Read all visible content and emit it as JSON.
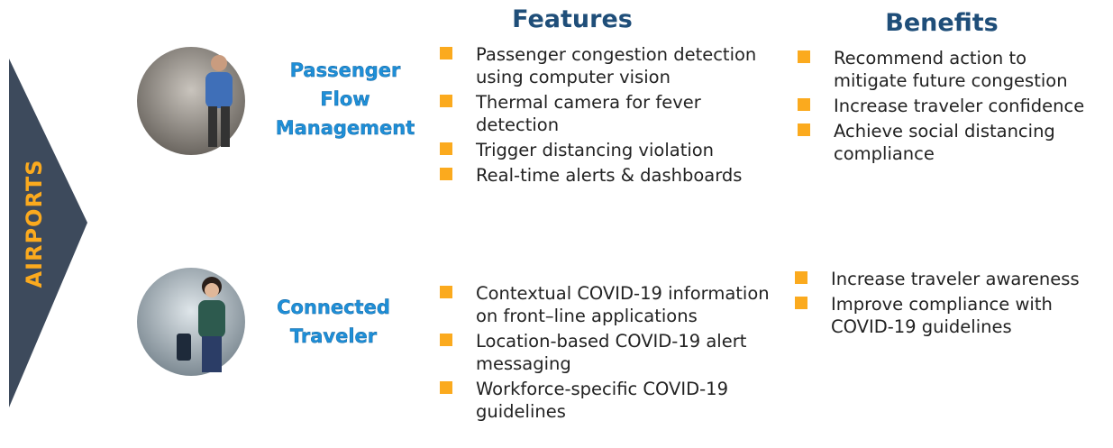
{
  "side_label": "AIRPORTS",
  "headers": {
    "features": "Features",
    "benefits": "Benefits"
  },
  "rows": [
    {
      "title": "Passenger Flow Management",
      "features": [
        "Passenger congestion detection using computer vision",
        "Thermal camera for fever detection",
        "Trigger distancing violation",
        "Real-time alerts & dashboards"
      ],
      "benefits": [
        "Recommend action to mitigate future congestion",
        "Increase traveler confidence",
        "Achieve social distancing compliance"
      ]
    },
    {
      "title": "Connected Traveler",
      "features": [
        "Contextual  COVID-19 information on front–line applications",
        "Location-based COVID-19 alert messaging",
        "Workforce-specific COVID-19 guidelines"
      ],
      "benefits": [
        "Increase traveler awareness",
        "Improve compliance with COVID-19 guidelines"
      ]
    }
  ]
}
